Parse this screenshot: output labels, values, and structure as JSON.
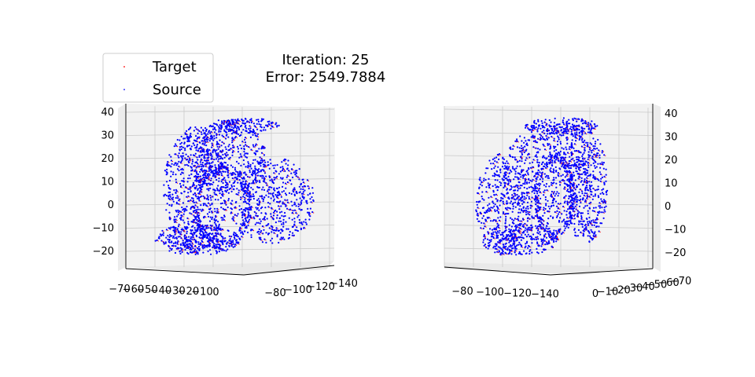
{
  "title": {
    "line1": "Iteration: 25",
    "line2": "Error: 2549.7884"
  },
  "legend": {
    "placement": "top-left",
    "entries": [
      {
        "label": "Target",
        "color": "#ff0000",
        "marker": "point"
      },
      {
        "label": "Source",
        "color": "#0000ff",
        "marker": "point"
      }
    ]
  },
  "chart_data": [
    {
      "type": "scatter",
      "projection": "3d",
      "grid": true,
      "series": [
        {
          "name": "Target",
          "color": "#ff0000"
        },
        {
          "name": "Source",
          "color": "#0000ff"
        }
      ],
      "z_ticks": [
        "40",
        "30",
        "20",
        "10",
        "0",
        "−10",
        "−20"
      ],
      "x_ticks": [
        "−70",
        "−60",
        "−50",
        "−40",
        "−30",
        "−20",
        "−10",
        "0"
      ],
      "y_ticks": [
        "−80",
        "−100",
        "−120",
        "−140"
      ]
    },
    {
      "type": "scatter",
      "projection": "3d",
      "grid": true,
      "series": [
        {
          "name": "Target",
          "color": "#ff0000"
        },
        {
          "name": "Source",
          "color": "#0000ff"
        }
      ],
      "z_ticks": [
        "40",
        "30",
        "20",
        "10",
        "0",
        "−10",
        "−20"
      ],
      "y_ticks": [
        "−80",
        "−100",
        "−120",
        "−140"
      ],
      "x_ticks": [
        "0",
        "−10",
        "−20",
        "−30",
        "−40",
        "−50",
        "−60",
        "−70"
      ]
    }
  ]
}
